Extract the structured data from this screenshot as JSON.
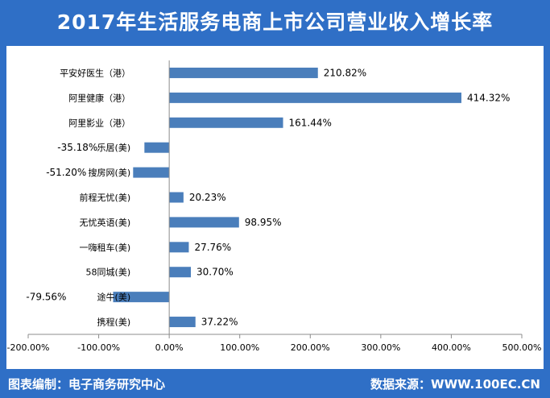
{
  "title": "2017年生活服务电商上市公司营业收入增长率",
  "footer": {
    "left": "图表编制：电子商务研究中心",
    "right": "数据来源：WWW.100EC.CN"
  },
  "colors": {
    "background": "#2f6fc6",
    "bar": "#4a7ebb",
    "axis": "#8c8c8c"
  },
  "chart_data": {
    "type": "bar",
    "orientation": "horizontal",
    "title": "2017年生活服务电商上市公司营业收入增长率",
    "xlabel": "",
    "ylabel": "",
    "xlim": [
      -200,
      500
    ],
    "tick_values": [
      -200,
      -100,
      0,
      100,
      200,
      300,
      400,
      500
    ],
    "tick_labels": [
      "-200.00%",
      "-100.00%",
      "0.00%",
      "100.00%",
      "200.00%",
      "300.00%",
      "400.00%",
      "500.00%"
    ],
    "grid": false,
    "legend": "none",
    "categories": [
      "平安好医生（港）",
      "阿里健康（港）",
      "阿里影业（港）",
      "乐居(美)",
      "搜房网(美)",
      "前程无忧(美)",
      "无忧英语(美)",
      "一嗨租车(美)",
      "58同城(美)",
      "途牛(美)",
      "携程(美)"
    ],
    "values": [
      210.82,
      414.32,
      161.44,
      -35.18,
      -51.2,
      20.23,
      98.95,
      27.76,
      30.7,
      -79.56,
      37.22
    ],
    "value_labels": [
      "210.82%",
      "414.32%",
      "161.44%",
      "-35.18%",
      "-51.20%",
      "20.23%",
      "98.95%",
      "27.76%",
      "30.70%",
      "-79.56%",
      "37.22%"
    ]
  }
}
